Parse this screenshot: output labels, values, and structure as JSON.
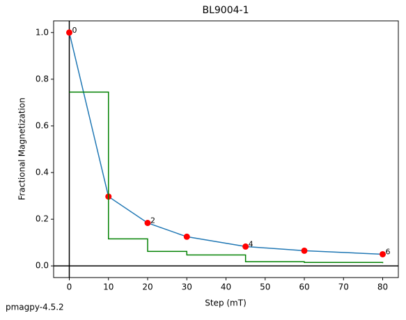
{
  "chart_data": {
    "type": "line",
    "title": "BL9004-1",
    "x_label": "Step (mT)",
    "y_label": "Fractional Magnetization",
    "footer": "pmagpy-4.5.2",
    "x": [
      0,
      10,
      20,
      30,
      45,
      60,
      80
    ],
    "series": [
      {
        "color": "#1f77b4",
        "marker_color": "#ff0000",
        "values": [
          1.0,
          0.297,
          0.184,
          0.125,
          0.083,
          0.065,
          0.05
        ],
        "point_labels": [
          "0",
          null,
          "2",
          null,
          "4",
          null,
          "6"
        ]
      },
      {
        "color": "#008000",
        "drawstyle": "steps-post",
        "values": [
          0.745,
          0.116,
          0.062,
          0.047,
          0.018,
          0.015,
          0.012
        ]
      }
    ],
    "xlim": [
      -4,
      84
    ],
    "ylim": [
      -0.05,
      1.05
    ],
    "xticks": [
      0,
      10,
      20,
      30,
      40,
      50,
      60,
      70,
      80
    ],
    "yticks": [
      {
        "value": 0,
        "label": "0.0"
      },
      0.2,
      0.4,
      0.6,
      0.8,
      {
        "value": 1,
        "label": "1.0"
      }
    ],
    "zero_lines": true,
    "grid": false
  }
}
